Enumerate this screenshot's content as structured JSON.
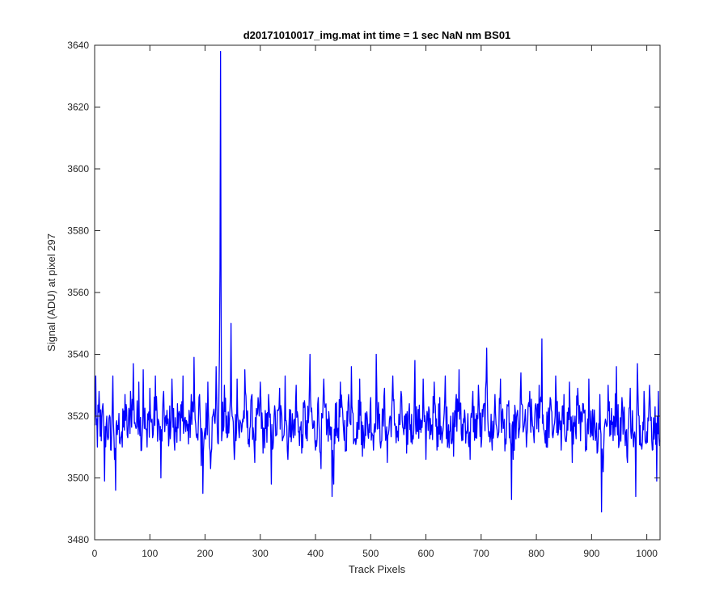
{
  "chart_data": {
    "type": "line",
    "title": "d20171010017_img.mat int time = 1 sec  NaN nm BS01",
    "xlabel": "Track Pixels",
    "ylabel": "Signal (ADU) at pixel 297",
    "xlim": [
      0,
      1024
    ],
    "ylim": [
      3480,
      3640
    ],
    "xticks": [
      "0",
      "100",
      "200",
      "300",
      "400",
      "500",
      "600",
      "700",
      "800",
      "900",
      "1000"
    ],
    "yticks": [
      "3480",
      "3500",
      "3520",
      "3540",
      "3560",
      "3580",
      "3600",
      "3620",
      "3640"
    ],
    "grid": false,
    "legend": "none",
    "series": [
      {
        "color": "#0000ff",
        "baseline": 3517,
        "noise_amplitude": 7,
        "points": [
          [
            0,
            3517
          ],
          [
            2,
            3533
          ],
          [
            5,
            3510
          ],
          [
            8,
            3528
          ],
          [
            12,
            3512
          ],
          [
            15,
            3524
          ],
          [
            18,
            3499
          ],
          [
            22,
            3520
          ],
          [
            25,
            3513
          ],
          [
            30,
            3509
          ],
          [
            33,
            3533
          ],
          [
            36,
            3506
          ],
          [
            38,
            3496
          ],
          [
            42,
            3517
          ],
          [
            50,
            3510
          ],
          [
            55,
            3527
          ],
          [
            60,
            3513
          ],
          [
            65,
            3528
          ],
          [
            70,
            3537
          ],
          [
            75,
            3516
          ],
          [
            80,
            3531
          ],
          [
            85,
            3509
          ],
          [
            88,
            3535
          ],
          [
            92,
            3516
          ],
          [
            95,
            3510
          ],
          [
            100,
            3529
          ],
          [
            105,
            3513
          ],
          [
            110,
            3533
          ],
          [
            115,
            3519
          ],
          [
            120,
            3500
          ],
          [
            125,
            3528
          ],
          [
            130,
            3517
          ],
          [
            135,
            3514
          ],
          [
            140,
            3532
          ],
          [
            145,
            3509
          ],
          [
            150,
            3524
          ],
          [
            155,
            3512
          ],
          [
            160,
            3533
          ],
          [
            165,
            3515
          ],
          [
            170,
            3511
          ],
          [
            175,
            3527
          ],
          [
            180,
            3539
          ],
          [
            185,
            3513
          ],
          [
            190,
            3527
          ],
          [
            193,
            3504
          ],
          [
            196,
            3495
          ],
          [
            200,
            3516
          ],
          [
            205,
            3531
          ],
          [
            210,
            3503
          ],
          [
            215,
            3521
          ],
          [
            220,
            3536
          ],
          [
            224,
            3511
          ],
          [
            226,
            3540
          ],
          [
            227,
            3568
          ],
          [
            228,
            3638
          ],
          [
            229,
            3560
          ],
          [
            230,
            3512
          ],
          [
            235,
            3530
          ],
          [
            240,
            3513
          ],
          [
            245,
            3522
          ],
          [
            247,
            3550
          ],
          [
            249,
            3520
          ],
          [
            253,
            3506
          ],
          [
            258,
            3532
          ],
          [
            262,
            3513
          ],
          [
            268,
            3519
          ],
          [
            272,
            3535
          ],
          [
            278,
            3511
          ],
          [
            285,
            3527
          ],
          [
            290,
            3505
          ],
          [
            295,
            3521
          ],
          [
            300,
            3531
          ],
          [
            305,
            3508
          ],
          [
            310,
            3516
          ],
          [
            315,
            3527
          ],
          [
            320,
            3498
          ],
          [
            325,
            3520
          ],
          [
            330,
            3514
          ],
          [
            335,
            3529
          ],
          [
            340,
            3512
          ],
          [
            345,
            3533
          ],
          [
            350,
            3506
          ],
          [
            355,
            3522
          ],
          [
            360,
            3513
          ],
          [
            365,
            3530
          ],
          [
            370,
            3515
          ],
          [
            375,
            3508
          ],
          [
            380,
            3525
          ],
          [
            385,
            3512
          ],
          [
            390,
            3540
          ],
          [
            395,
            3516
          ],
          [
            400,
            3509
          ],
          [
            405,
            3526
          ],
          [
            410,
            3503
          ],
          [
            415,
            3532
          ],
          [
            420,
            3514
          ],
          [
            425,
            3519
          ],
          [
            430,
            3494
          ],
          [
            433,
            3498
          ],
          [
            436,
            3524
          ],
          [
            440,
            3513
          ],
          [
            445,
            3531
          ],
          [
            450,
            3518
          ],
          [
            455,
            3509
          ],
          [
            460,
            3527
          ],
          [
            465,
            3536
          ],
          [
            470,
            3512
          ],
          [
            475,
            3518
          ],
          [
            480,
            3532
          ],
          [
            485,
            3507
          ],
          [
            490,
            3521
          ],
          [
            495,
            3514
          ],
          [
            500,
            3526
          ],
          [
            505,
            3509
          ],
          [
            510,
            3540
          ],
          [
            515,
            3516
          ],
          [
            520,
            3512
          ],
          [
            525,
            3529
          ],
          [
            530,
            3505
          ],
          [
            535,
            3520
          ],
          [
            540,
            3533
          ],
          [
            545,
            3516
          ],
          [
            550,
            3512
          ],
          [
            555,
            3528
          ],
          [
            560,
            3514
          ],
          [
            565,
            3508
          ],
          [
            570,
            3524
          ],
          [
            575,
            3511
          ],
          [
            580,
            3538
          ],
          [
            585,
            3515
          ],
          [
            590,
            3519
          ],
          [
            595,
            3532
          ],
          [
            600,
            3506
          ],
          [
            605,
            3523
          ],
          [
            610,
            3517
          ],
          [
            615,
            3531
          ],
          [
            620,
            3509
          ],
          [
            625,
            3526
          ],
          [
            630,
            3514
          ],
          [
            635,
            3533
          ],
          [
            640,
            3512
          ],
          [
            645,
            3520
          ],
          [
            650,
            3507
          ],
          [
            655,
            3527
          ],
          [
            660,
            3535
          ],
          [
            665,
            3512
          ],
          [
            670,
            3522
          ],
          [
            675,
            3516
          ],
          [
            680,
            3506
          ],
          [
            685,
            3528
          ],
          [
            690,
            3513
          ],
          [
            695,
            3530
          ],
          [
            700,
            3510
          ],
          [
            705,
            3524
          ],
          [
            710,
            3542
          ],
          [
            715,
            3515
          ],
          [
            720,
            3509
          ],
          [
            725,
            3527
          ],
          [
            730,
            3513
          ],
          [
            735,
            3532
          ],
          [
            740,
            3516
          ],
          [
            745,
            3511
          ],
          [
            750,
            3525
          ],
          [
            755,
            3493
          ],
          [
            758,
            3506
          ],
          [
            762,
            3521
          ],
          [
            768,
            3513
          ],
          [
            772,
            3534
          ],
          [
            778,
            3517
          ],
          [
            782,
            3510
          ],
          [
            788,
            3528
          ],
          [
            795,
            3514
          ],
          [
            800,
            3522
          ],
          [
            805,
            3530
          ],
          [
            810,
            3545
          ],
          [
            813,
            3516
          ],
          [
            818,
            3510
          ],
          [
            825,
            3526
          ],
          [
            830,
            3513
          ],
          [
            835,
            3533
          ],
          [
            840,
            3515
          ],
          [
            845,
            3509
          ],
          [
            850,
            3527
          ],
          [
            855,
            3514
          ],
          [
            860,
            3531
          ],
          [
            865,
            3505
          ],
          [
            870,
            3520
          ],
          [
            875,
            3529
          ],
          [
            880,
            3512
          ],
          [
            885,
            3524
          ],
          [
            890,
            3510
          ],
          [
            895,
            3532
          ],
          [
            900,
            3515
          ],
          [
            905,
            3522
          ],
          [
            910,
            3508
          ],
          [
            915,
            3527
          ],
          [
            918,
            3489
          ],
          [
            921,
            3502
          ],
          [
            925,
            3519
          ],
          [
            930,
            3530
          ],
          [
            935,
            3514
          ],
          [
            940,
            3520
          ],
          [
            945,
            3536
          ],
          [
            950,
            3511
          ],
          [
            955,
            3526
          ],
          [
            960,
            3516
          ],
          [
            965,
            3505
          ],
          [
            970,
            3529
          ],
          [
            975,
            3514
          ],
          [
            980,
            3494
          ],
          [
            983,
            3537
          ],
          [
            986,
            3520
          ],
          [
            990,
            3511
          ],
          [
            995,
            3528
          ],
          [
            1000,
            3515
          ],
          [
            1005,
            3530
          ],
          [
            1010,
            3509
          ],
          [
            1015,
            3523
          ],
          [
            1018,
            3499
          ],
          [
            1021,
            3528
          ],
          [
            1024,
            3512
          ]
        ]
      }
    ]
  }
}
